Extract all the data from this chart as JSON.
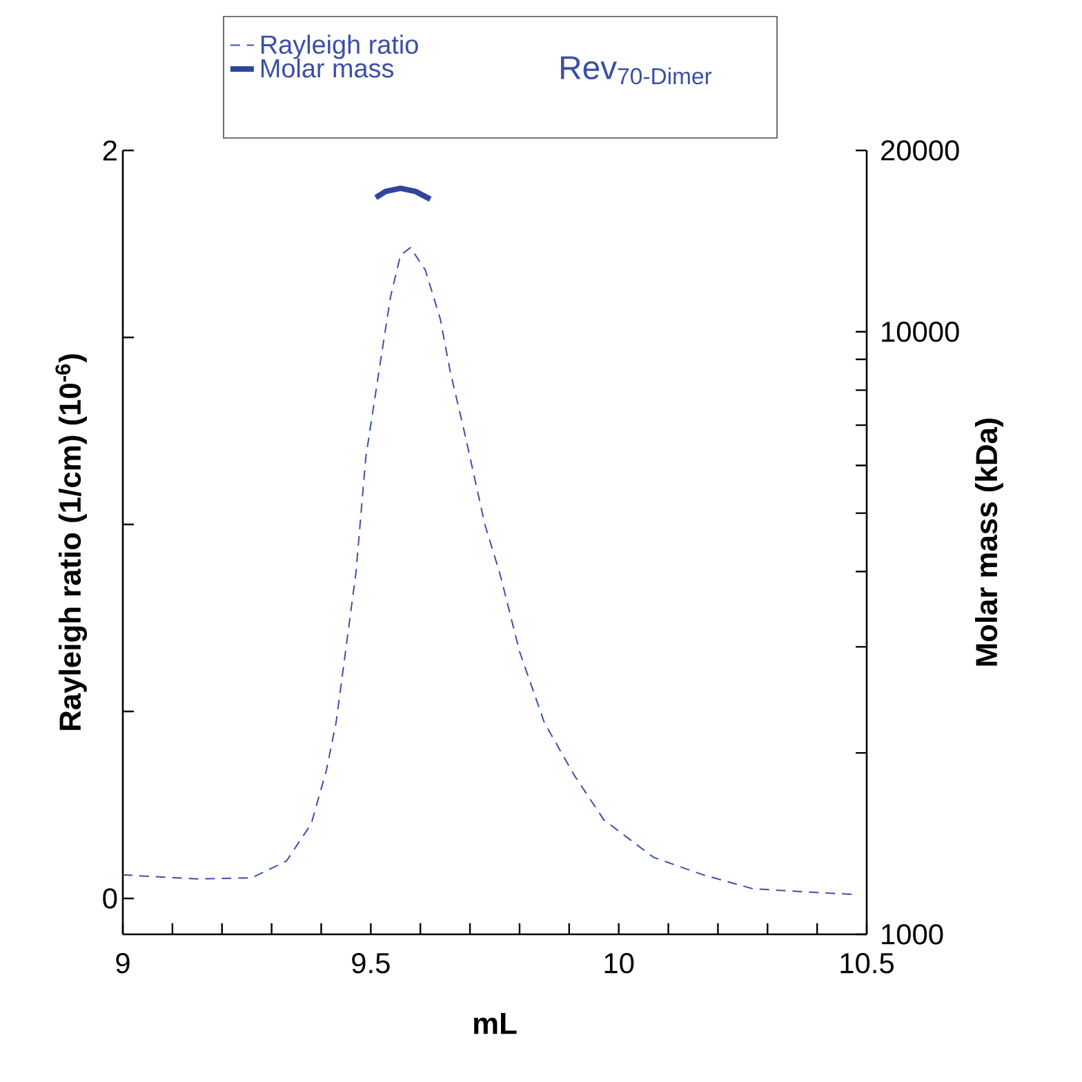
{
  "chart_data": {
    "type": "line",
    "xlabel": "mL",
    "ylabel": "Rayleigh ratio (1/cm) (10$^{-6}$)",
    "y2label": "Molar mass (kDa)",
    "annotations": [
      "Rev$_{70-Dimer}$"
    ],
    "xlim": [
      9,
      10.5
    ],
    "ylim": [
      -0.096,
      2
    ],
    "y2lim": [
      1000,
      20000
    ],
    "log": "y2",
    "legend": "top",
    "marker": "none",
    "xticks": [
      9,
      {
        "value": 9.1,
        "label": null
      },
      {
        "value": 9.2,
        "label": null
      },
      {
        "value": 9.3,
        "label": null
      },
      {
        "value": 9.4,
        "label": null
      },
      9.5,
      {
        "value": 9.6,
        "label": null
      },
      {
        "value": 9.7,
        "label": null
      },
      {
        "value": 9.8,
        "label": null
      },
      {
        "value": 9.9,
        "label": null
      },
      10,
      {
        "value": 10.1,
        "label": null
      },
      {
        "value": 10.2,
        "label": null
      },
      {
        "value": 10.3,
        "label": null
      },
      {
        "value": 10.4,
        "label": null
      },
      10.5
    ],
    "yticks": [
      0,
      {
        "value": 0.5,
        "label": null
      },
      {
        "value": 1,
        "label": null
      },
      {
        "value": 1.5,
        "label": null
      },
      2
    ],
    "y2ticks": [
      1000,
      {
        "value": 2000,
        "label": null
      },
      {
        "value": 3000,
        "label": null
      },
      {
        "value": 4000,
        "label": null
      },
      {
        "value": 5000,
        "label": null
      },
      {
        "value": 6000,
        "label": null
      },
      {
        "value": 7000,
        "label": null
      },
      {
        "value": 8000,
        "label": null
      },
      {
        "value": 9000,
        "label": null
      },
      10000,
      20000
    ],
    "series": [
      {
        "name": "Rayleigh ratio",
        "color": "#3b4fa8",
        "line_style": "dashed",
        "x": [
          9.0,
          9.15,
          9.26,
          9.33,
          9.38,
          9.41,
          9.43,
          9.45,
          9.47,
          9.49,
          9.52,
          9.54,
          9.56,
          9.58,
          9.61,
          9.64,
          9.66,
          9.69,
          9.73,
          9.76,
          9.8,
          9.85,
          9.91,
          9.97,
          10.07,
          10.17,
          10.27,
          10.37,
          10.47
        ],
        "values": [
          0.063,
          0.052,
          0.055,
          0.1,
          0.2,
          0.34,
          0.47,
          0.67,
          0.87,
          1.18,
          1.44,
          1.61,
          1.72,
          1.74,
          1.68,
          1.55,
          1.41,
          1.24,
          1.0,
          0.87,
          0.66,
          0.47,
          0.33,
          0.21,
          0.11,
          0.063,
          0.026,
          0.018,
          0.011
        ]
      },
      {
        "name": "Molar mass",
        "color": "#2e45a0",
        "line_style": "solid",
        "axis": "y2",
        "x": [
          9.51,
          9.53,
          9.56,
          9.59,
          9.62
        ],
        "values": [
          16700,
          17100,
          17300,
          17100,
          16600
        ]
      }
    ]
  }
}
